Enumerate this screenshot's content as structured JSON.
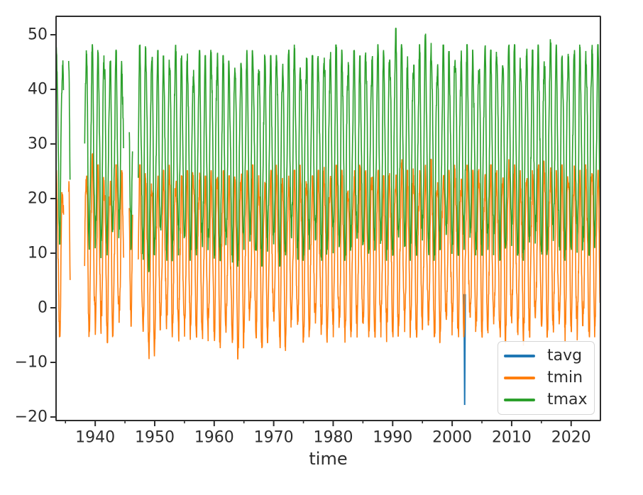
{
  "figure": {
    "background": "#ffffff",
    "axis_color": "#2d2d2d",
    "text_color": "#2d2d2d"
  },
  "chart_data": {
    "type": "line",
    "title": "",
    "xlabel": "time",
    "ylabel": "",
    "x_range": [
      1933.42,
      2024.92
    ],
    "y_range": [
      -20.6,
      53.4
    ],
    "x_ticks": [
      1940,
      1950,
      1960,
      1970,
      1980,
      1990,
      2000,
      2010,
      2020
    ],
    "x_minor_ticks": [
      1935,
      1945,
      1955,
      1965,
      1975,
      1985,
      1995,
      2005,
      2015
    ],
    "y_ticks": [
      -20,
      -10,
      0,
      10,
      20,
      30,
      40,
      50
    ],
    "y_tick_labels": [
      "−20",
      "−10",
      "0",
      "10",
      "20",
      "30",
      "40",
      "50"
    ],
    "grid": false,
    "legend": {
      "position": "lower right",
      "entries": [
        "tavg",
        "tmin",
        "tmax"
      ]
    },
    "draw_order": [
      "tavg",
      "tmin",
      "tmax"
    ],
    "series": [
      {
        "name": "tavg",
        "color": "#1f77b4",
        "description": "only visible as a single downward spike (outlier) near 2002",
        "points": [
          [
            2002.0,
            2.5
          ],
          [
            2002.1,
            -17.8
          ],
          [
            2002.2,
            2.5
          ]
        ]
      },
      {
        "name": "tmin",
        "color": "#ff7f0e",
        "description": "daily minimum temperature, seasonal oscillation; yearly envelope in yearly_envelope (tmin_winter_low / tmin_summer_high)"
      },
      {
        "name": "tmax",
        "color": "#2ca02c",
        "description": "daily maximum temperature, seasonal oscillation; yearly envelope in yearly_envelope (tmax_winter_low / tmax_summer_high)"
      }
    ],
    "gaps": [
      [
        1934.7,
        1935.5
      ],
      [
        1935.8,
        1938.2
      ],
      [
        1944.8,
        1945.7
      ],
      [
        1946.3,
        1947.2
      ]
    ],
    "yearly_envelope": {
      "columns": [
        "year",
        "tmin_winter_low",
        "tmin_summer_high",
        "tmax_winter_low",
        "tmax_summer_high"
      ],
      "rows": [
        [
          1933,
          -4,
          24,
          16,
          47
        ],
        [
          1934,
          -5,
          22,
          13,
          45
        ],
        [
          1935,
          -4,
          22,
          14,
          44
        ],
        [
          1936,
          0,
          23,
          18,
          44
        ],
        [
          1937,
          -3,
          24,
          14,
          46
        ],
        [
          1938,
          -4,
          25,
          11,
          47
        ],
        [
          1939,
          -3,
          27,
          12,
          47
        ],
        [
          1940,
          -5,
          25,
          10,
          46
        ],
        [
          1941,
          -2,
          24,
          13,
          47
        ],
        [
          1942,
          -5,
          23,
          11,
          45
        ],
        [
          1943,
          -3,
          25,
          13,
          46
        ],
        [
          1944,
          -4,
          24,
          14,
          44
        ],
        [
          1945,
          1,
          27,
          17,
          44
        ],
        [
          1946,
          -2,
          26,
          12,
          44
        ],
        [
          1947,
          -4,
          25,
          11,
          47
        ],
        [
          1948,
          -6,
          24,
          9,
          48
        ],
        [
          1949,
          -8,
          24,
          8,
          47
        ],
        [
          1950,
          -5,
          23,
          11,
          46
        ],
        [
          1951,
          -3,
          24,
          12,
          45
        ],
        [
          1952,
          -4,
          25,
          10,
          46
        ],
        [
          1953,
          -2,
          24,
          13,
          47
        ],
        [
          1954,
          -5,
          23,
          11,
          45
        ],
        [
          1955,
          -6,
          24,
          10,
          46
        ],
        [
          1956,
          -3,
          25,
          12,
          44
        ],
        [
          1957,
          -4,
          24,
          11,
          46
        ],
        [
          1958,
          -6,
          23,
          9,
          45
        ],
        [
          1959,
          -3,
          24,
          12,
          47
        ],
        [
          1960,
          -5,
          25,
          10,
          46
        ],
        [
          1961,
          -6,
          24,
          9,
          45
        ],
        [
          1962,
          -4,
          23,
          11,
          44
        ],
        [
          1963,
          -8,
          24,
          8,
          46
        ],
        [
          1964,
          -6,
          25,
          10,
          45
        ],
        [
          1965,
          -4,
          24,
          12,
          46
        ],
        [
          1966,
          -3,
          25,
          11,
          47
        ],
        [
          1967,
          -5,
          24,
          10,
          45
        ],
        [
          1968,
          -6,
          23,
          9,
          46
        ],
        [
          1969,
          -3,
          24,
          12,
          45
        ],
        [
          1970,
          -4,
          25,
          11,
          47
        ],
        [
          1971,
          -7,
          24,
          9,
          45
        ],
        [
          1972,
          -4,
          23,
          11,
          46
        ],
        [
          1973,
          -3,
          24,
          12,
          47
        ],
        [
          1974,
          -5,
          25,
          10,
          45
        ],
        [
          1975,
          -4,
          24,
          11,
          46
        ],
        [
          1976,
          -3,
          23,
          12,
          45
        ],
        [
          1977,
          -4,
          24,
          11,
          46
        ],
        [
          1978,
          -5,
          25,
          10,
          47
        ],
        [
          1979,
          -3,
          24,
          12,
          46
        ],
        [
          1980,
          -4,
          25,
          11,
          47
        ],
        [
          1981,
          -5,
          24,
          10,
          46
        ],
        [
          1982,
          -4,
          23,
          11,
          45
        ],
        [
          1983,
          -3,
          24,
          12,
          46
        ],
        [
          1984,
          -5,
          25,
          10,
          45
        ],
        [
          1985,
          -4,
          24,
          11,
          47
        ],
        [
          1986,
          -3,
          25,
          12,
          46
        ],
        [
          1987,
          -4,
          24,
          11,
          47
        ],
        [
          1988,
          -5,
          23,
          10,
          46
        ],
        [
          1989,
          -3,
          24,
          12,
          47
        ],
        [
          1990,
          -4,
          25,
          11,
          50
        ],
        [
          1991,
          -3,
          26,
          12,
          47
        ],
        [
          1992,
          -5,
          24,
          10,
          45
        ],
        [
          1993,
          -3,
          25,
          12,
          46
        ],
        [
          1994,
          -4,
          24,
          11,
          47
        ],
        [
          1995,
          -3,
          25,
          12,
          49
        ],
        [
          1996,
          -4,
          26,
          10,
          48
        ],
        [
          1997,
          -5,
          24,
          11,
          45
        ],
        [
          1998,
          -3,
          25,
          12,
          47
        ],
        [
          1999,
          -4,
          24,
          11,
          46
        ],
        [
          2000,
          -3,
          25,
          12,
          47
        ],
        [
          2001,
          -4,
          24,
          11,
          46
        ],
        [
          2002,
          -3,
          25,
          12,
          47
        ],
        [
          2003,
          -4,
          24,
          11,
          46
        ],
        [
          2004,
          -3,
          25,
          12,
          45
        ],
        [
          2005,
          -4,
          24,
          11,
          47
        ],
        [
          2006,
          -5,
          25,
          10,
          46
        ],
        [
          2007,
          -3,
          24,
          12,
          47
        ],
        [
          2008,
          -5,
          25,
          10,
          46
        ],
        [
          2009,
          -3,
          26,
          12,
          47
        ],
        [
          2010,
          -4,
          25,
          11,
          47
        ],
        [
          2011,
          -6,
          24,
          10,
          46
        ],
        [
          2012,
          -3,
          25,
          12,
          47
        ],
        [
          2013,
          -4,
          24,
          11,
          46
        ],
        [
          2014,
          -3,
          25,
          12,
          47
        ],
        [
          2015,
          -4,
          26,
          11,
          46
        ],
        [
          2016,
          -3,
          25,
          12,
          48
        ],
        [
          2017,
          -4,
          24,
          11,
          47
        ],
        [
          2018,
          -5,
          25,
          10,
          46
        ],
        [
          2019,
          -2,
          26,
          12,
          47
        ],
        [
          2020,
          -3,
          25,
          12,
          46
        ],
        [
          2021,
          -6,
          24,
          10,
          47
        ],
        [
          2022,
          -3,
          25,
          12,
          47
        ],
        [
          2023,
          -4,
          26,
          11,
          48
        ],
        [
          2024,
          -2,
          24,
          12,
          47
        ]
      ]
    }
  }
}
